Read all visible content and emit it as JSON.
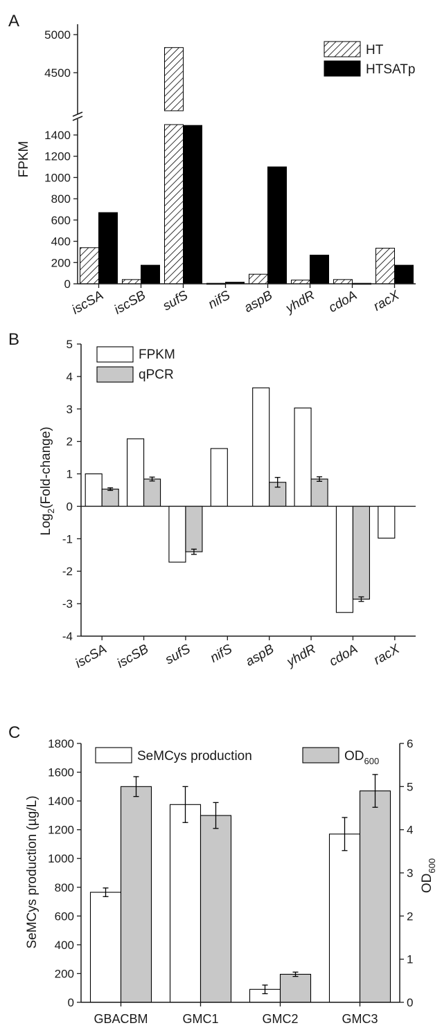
{
  "colors": {
    "axis": "#1a1a1a",
    "HT_fill": "hatched",
    "HTSATp_fill": "#000000",
    "FPKM_fill": "#ffffff",
    "qPCR_fill": "#c8c8c8",
    "SeMCys_fill": "#ffffff",
    "OD_fill": "#c8c8c8"
  },
  "chart_data": [
    {
      "panel": "A",
      "type": "bar",
      "categories": [
        "iscSA",
        "iscSB",
        "sufS",
        "nifS",
        "aspB",
        "yhdR",
        "cdoA",
        "racX"
      ],
      "series": [
        {
          "name": "HT",
          "values": [
            340,
            40,
            4830,
            5,
            90,
            35,
            40,
            335
          ]
        },
        {
          "name": "HTSATp",
          "values": [
            670,
            175,
            1490,
            15,
            1100,
            270,
            5,
            175
          ]
        }
      ],
      "ylabel": "FPKM",
      "xlabel": "",
      "y_axis_break": true,
      "y_ranges": [
        [
          0,
          1500
        ],
        [
          4000,
          5000
        ]
      ],
      "yticks_lower": [
        "0",
        "200",
        "400",
        "600",
        "800",
        "1000",
        "1200",
        "1400"
      ],
      "yticks_upper": [
        "4500",
        "5000"
      ],
      "legend": [
        "HT",
        "HTSATp"
      ],
      "legend_position": "top-right"
    },
    {
      "panel": "B",
      "type": "bar",
      "categories": [
        "iscSA",
        "iscSB",
        "sufS",
        "nifS",
        "aspB",
        "yhdR",
        "cdoA",
        "racX"
      ],
      "series": [
        {
          "name": "FPKM",
          "values": [
            1.0,
            2.08,
            -1.72,
            1.78,
            3.65,
            3.03,
            -3.27,
            -0.98
          ],
          "errors": null
        },
        {
          "name": "qPCR",
          "values": [
            0.53,
            0.84,
            -1.4,
            null,
            0.74,
            0.84,
            -2.86,
            null
          ],
          "errors": [
            0.04,
            0.06,
            0.08,
            null,
            0.15,
            0.07,
            0.07,
            null
          ]
        }
      ],
      "ylabel_main": "Log",
      "ylabel_sub": "2",
      "ylabel_rest": "(Fold-change)",
      "ylim": [
        -4,
        5
      ],
      "yticks": [
        "-4",
        "-3",
        "-2",
        "-1",
        "0",
        "1",
        "2",
        "3",
        "4",
        "5"
      ],
      "legend": [
        "FPKM",
        "qPCR"
      ],
      "legend_position": "top-left"
    },
    {
      "panel": "C",
      "type": "bar",
      "categories": [
        "GBACBM",
        "GMC1",
        "GMC2",
        "GMC3"
      ],
      "series": [
        {
          "name": "SeMCys production",
          "axis": "left",
          "values": [
            765,
            1375,
            90,
            1170
          ],
          "errors": [
            30,
            125,
            30,
            115
          ]
        },
        {
          "name": "OD",
          "name_sub": "600",
          "axis": "right",
          "values": [
            5.0,
            4.33,
            0.65,
            4.9
          ],
          "errors": [
            0.23,
            0.3,
            0.05,
            0.38
          ]
        }
      ],
      "ylabel_left": "SeMCys production (µg/L)",
      "ylabel_right": "OD",
      "ylabel_right_sub": "600",
      "ylim_left": [
        0,
        1800
      ],
      "ylim_right": [
        0,
        6
      ],
      "yticks_left": [
        "0",
        "200",
        "400",
        "600",
        "800",
        "1000",
        "1200",
        "1400",
        "1600",
        "1800"
      ],
      "yticks_right": [
        "0",
        "1",
        "2",
        "3",
        "4",
        "5",
        "6"
      ],
      "legend_position": "top"
    }
  ]
}
